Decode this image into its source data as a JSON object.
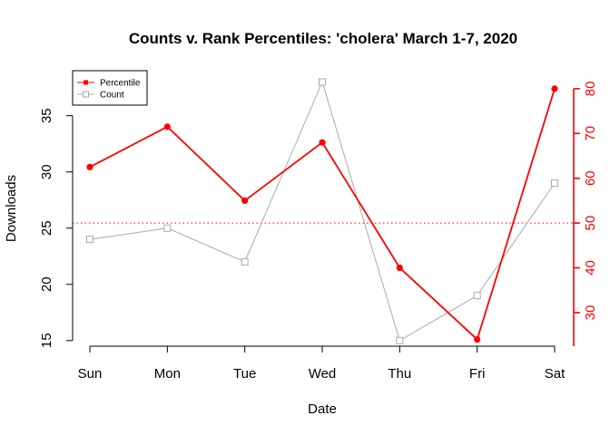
{
  "chart_data": {
    "type": "line",
    "title": "Counts v. Rank Percentiles: 'cholera' March 1-7, 2020",
    "xlabel": "Date",
    "ylabel": "Downloads",
    "categories": [
      "Sun",
      "Mon",
      "Tue",
      "Wed",
      "Thu",
      "Fri",
      "Sat"
    ],
    "y_left": {
      "range": [
        14.5,
        38.2
      ],
      "ticks": [
        15,
        20,
        25,
        30,
        35
      ]
    },
    "y_right": {
      "range": [
        22.5,
        82
      ],
      "ticks": [
        30,
        40,
        50,
        60,
        70,
        80
      ]
    },
    "reference_line": {
      "axis": "right",
      "value": 50,
      "style": "dotted",
      "color": "#ff0000"
    },
    "series": [
      {
        "name": "Percentile",
        "axis": "right",
        "color": "#ff0000",
        "marker": "filled-circle",
        "values": [
          62.5,
          71.5,
          55,
          68,
          40,
          24,
          80
        ]
      },
      {
        "name": "Count",
        "axis": "left",
        "color": "#aaaaaa",
        "marker": "open-square",
        "values": [
          24,
          25,
          22,
          38,
          15,
          19,
          29
        ]
      }
    ],
    "legend": {
      "position": "top-left",
      "entries": [
        "Percentile",
        "Count"
      ]
    }
  }
}
